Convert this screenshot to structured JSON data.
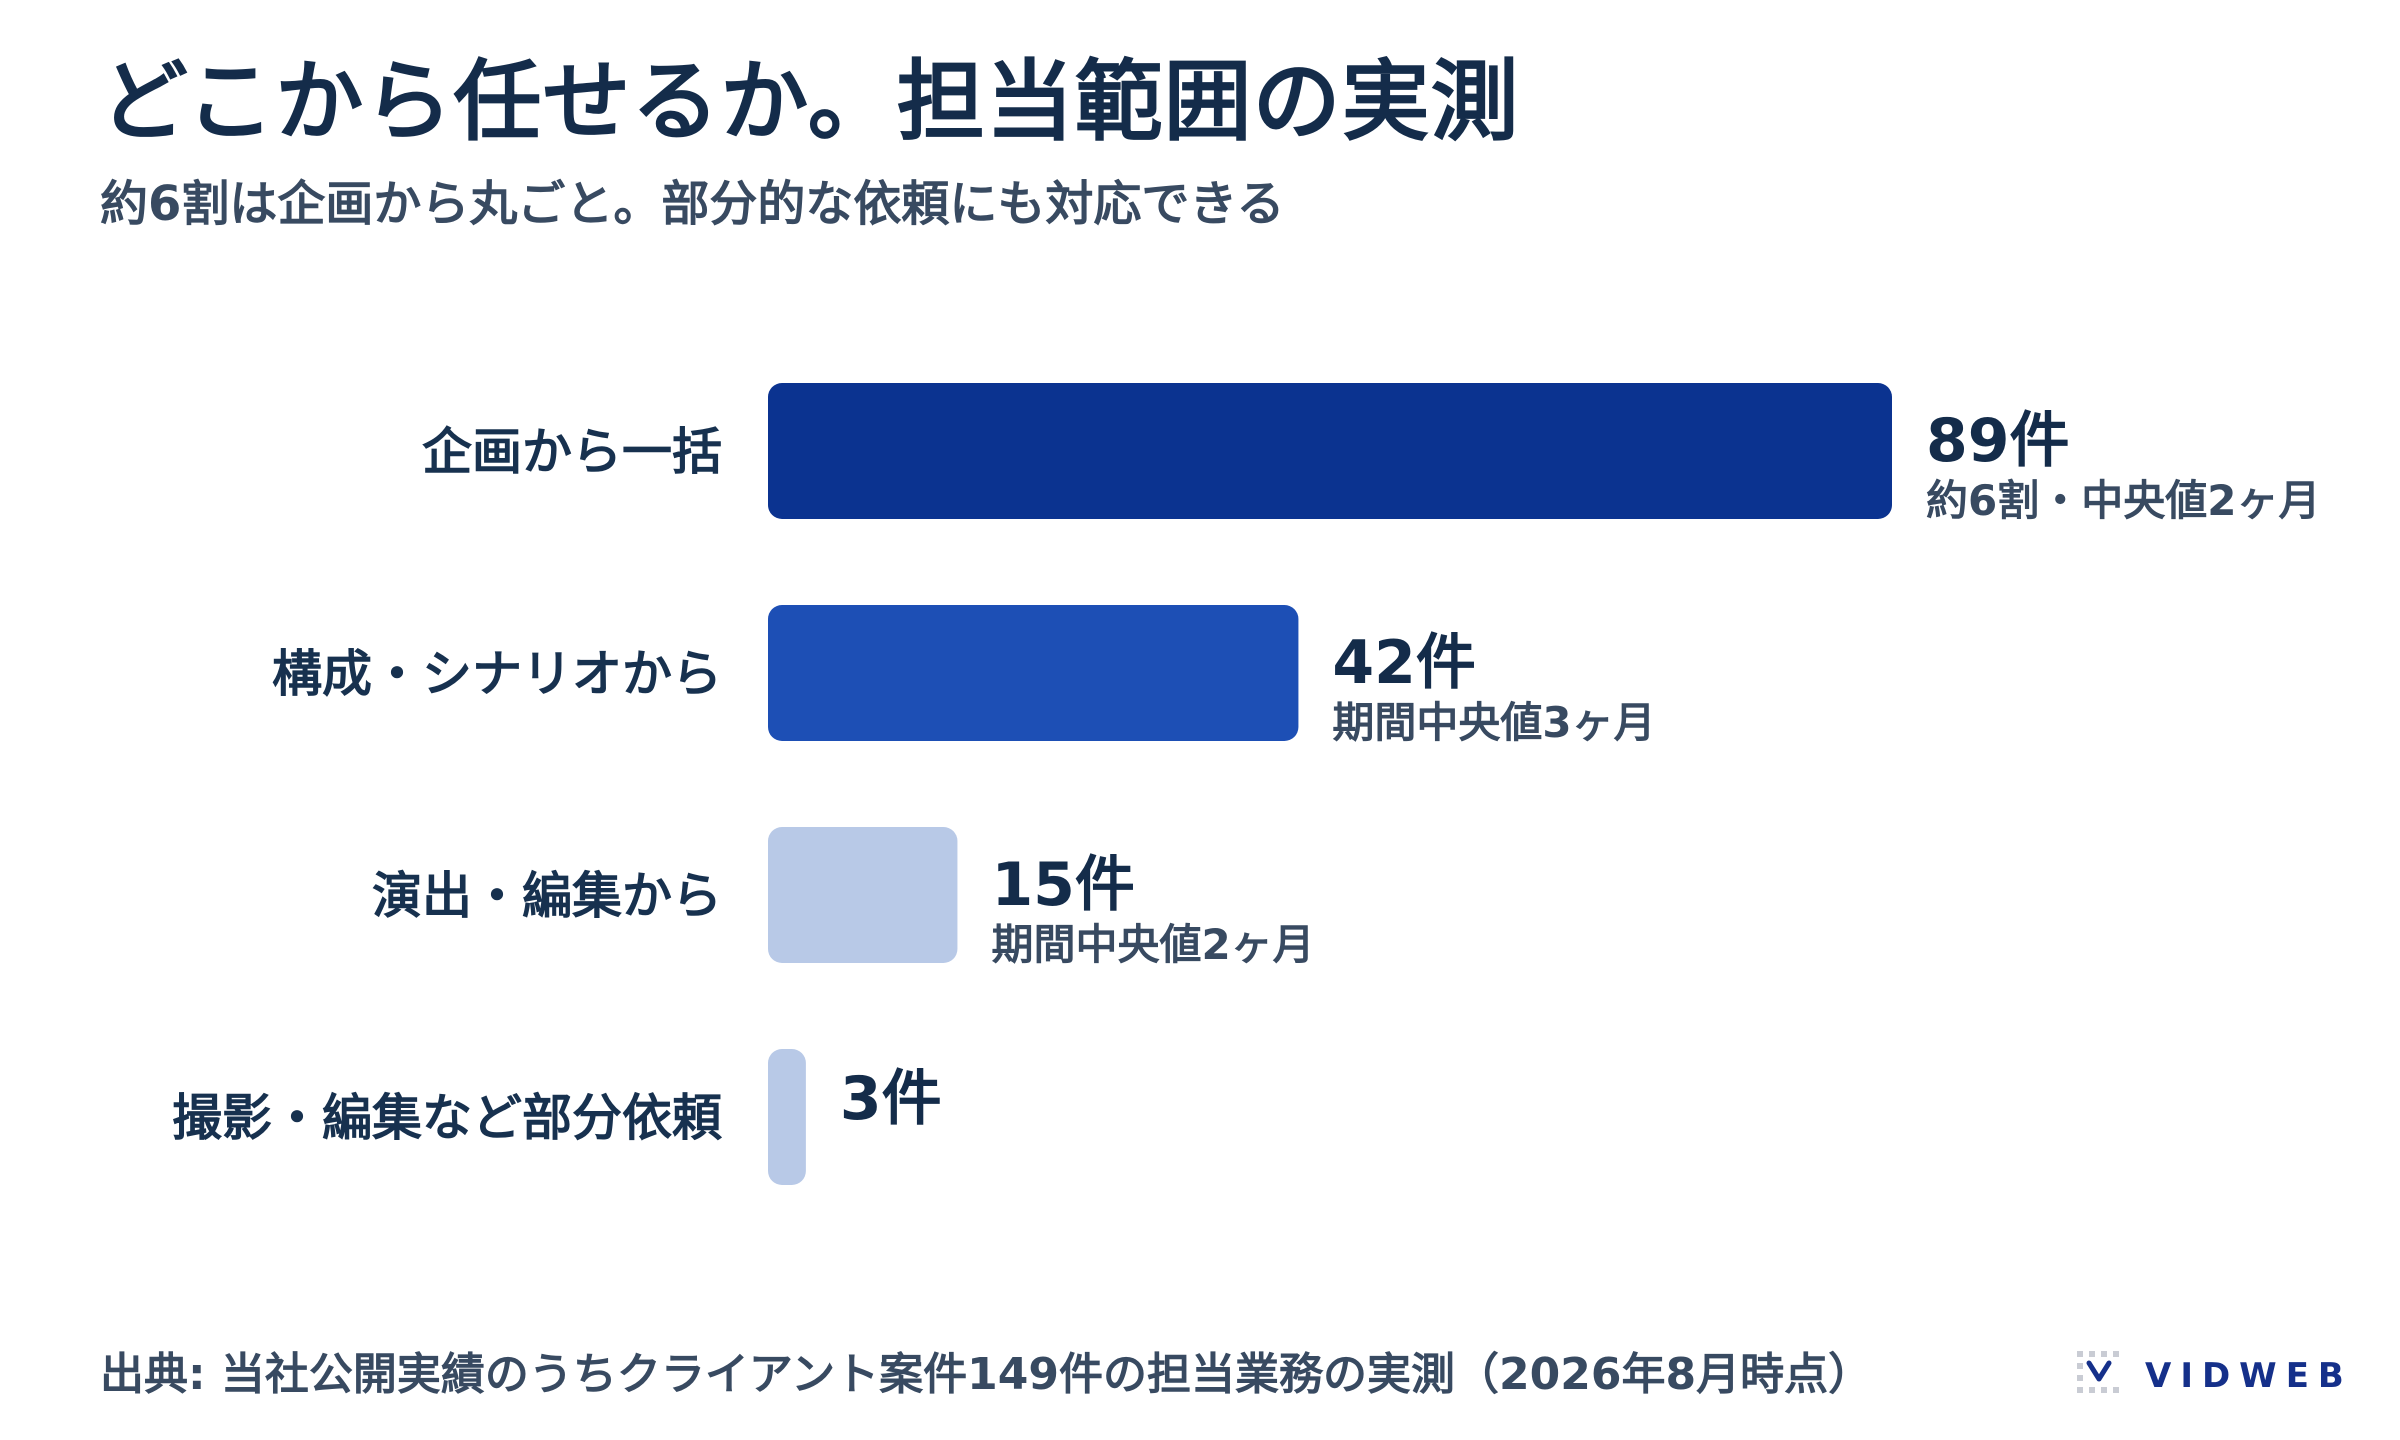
{
  "title": "どこから任せるか。担当範囲の実測",
  "subtitle": "約6割は企画から丸ごと。部分的な依頼にも対応できる",
  "chart_data": {
    "type": "bar",
    "orientation": "horizontal",
    "categories": [
      "企画から一括",
      "構成・シナリオから",
      "演出・編集から",
      "撮影・編集など部分依頼"
    ],
    "values": [
      89,
      42,
      15,
      3
    ],
    "value_labels": [
      "89件",
      "42件",
      "15件",
      "3件"
    ],
    "notes": [
      "約6割・中央値2ヶ月",
      "期間中央値3ヶ月",
      "期間中央値2ヶ月",
      ""
    ],
    "bar_colors": [
      "#0b3390",
      "#1d4fb5",
      "#b8c9e7",
      "#b8c9e7"
    ],
    "xlim": [
      0,
      89
    ],
    "grid": false,
    "legend": "none"
  },
  "footer": {
    "source": "出典: 当社公開実績のうちクライアント案件149件の担当業務の実測（2026年8月時点）",
    "logo_text": "VIDWEB",
    "logo_icon": "vidweb-logo-icon"
  },
  "colors": {
    "title": "#142c4a",
    "text": "#384a61",
    "brand": "#15308a"
  }
}
